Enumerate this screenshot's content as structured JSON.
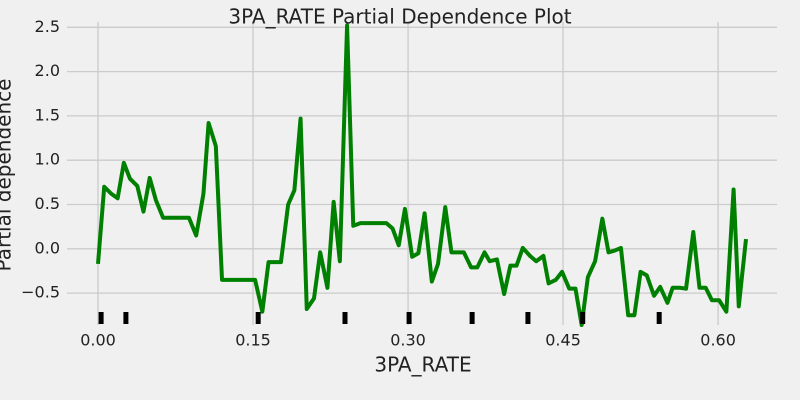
{
  "chart_data": {
    "type": "line",
    "title": "3PA_RATE Partial Dependence Plot",
    "x_label": "3PA_RATE",
    "y_label": "Partial dependence",
    "xlim": [
      -0.03,
      0.657
    ],
    "ylim": [
      -0.86,
      2.56
    ],
    "xticks": [
      {
        "value": 0,
        "label": "0.00"
      },
      {
        "value": 0.15,
        "label": "0.15"
      },
      {
        "value": 0.3,
        "label": "0.30"
      },
      {
        "value": 0.45,
        "label": "0.45"
      },
      {
        "value": 0.6,
        "label": "0.60"
      }
    ],
    "yticks": [
      {
        "value": -0.5,
        "label": "−0.5"
      },
      {
        "value": 0,
        "label": "0.0"
      },
      0.5,
      {
        "value": 1,
        "label": "1.0"
      },
      1.5,
      {
        "value": 2,
        "label": "2.0"
      },
      2.5
    ],
    "grid": true,
    "series": [
      {
        "color": "#008000",
        "x": [
          0.0,
          0.006,
          0.013,
          0.019,
          0.025,
          0.031,
          0.038,
          0.044,
          0.05,
          0.056,
          0.063,
          0.07,
          0.075,
          0.082,
          0.088,
          0.095,
          0.102,
          0.107,
          0.114,
          0.12,
          0.127,
          0.133,
          0.139,
          0.146,
          0.152,
          0.159,
          0.165,
          0.171,
          0.177,
          0.184,
          0.19,
          0.196,
          0.202,
          0.209,
          0.215,
          0.222,
          0.228,
          0.234,
          0.241,
          0.247,
          0.254,
          0.259,
          0.266,
          0.272,
          0.279,
          0.285,
          0.291,
          0.297,
          0.304,
          0.31,
          0.316,
          0.323,
          0.329,
          0.336,
          0.342,
          0.348,
          0.354,
          0.361,
          0.367,
          0.374,
          0.379,
          0.386,
          0.393,
          0.399,
          0.405,
          0.411,
          0.418,
          0.424,
          0.431,
          0.436,
          0.443,
          0.449,
          0.456,
          0.462,
          0.468,
          0.474,
          0.481,
          0.488,
          0.494,
          0.5,
          0.506,
          0.513,
          0.519,
          0.525,
          0.531,
          0.538,
          0.544,
          0.551,
          0.556,
          0.563,
          0.569,
          0.576,
          0.582,
          0.588,
          0.594,
          0.601,
          0.608,
          0.615,
          0.62,
          0.627
        ],
        "values": [
          -0.17,
          0.7,
          0.62,
          0.57,
          0.97,
          0.79,
          0.71,
          0.42,
          0.8,
          0.55,
          0.35,
          0.35,
          0.35,
          0.35,
          0.35,
          0.15,
          0.62,
          1.42,
          1.16,
          -0.35,
          -0.35,
          -0.35,
          -0.35,
          -0.35,
          -0.35,
          -0.71,
          -0.15,
          -0.15,
          -0.15,
          0.5,
          0.66,
          1.47,
          -0.68,
          -0.56,
          -0.04,
          -0.44,
          0.53,
          -0.14,
          2.52,
          0.26,
          0.29,
          0.29,
          0.29,
          0.29,
          0.29,
          0.23,
          0.04,
          0.45,
          -0.09,
          -0.05,
          0.4,
          -0.37,
          -0.17,
          0.47,
          -0.04,
          -0.04,
          -0.04,
          -0.21,
          -0.21,
          -0.04,
          -0.14,
          -0.12,
          -0.51,
          -0.19,
          -0.19,
          0.01,
          -0.08,
          -0.14,
          -0.08,
          -0.39,
          -0.35,
          -0.26,
          -0.45,
          -0.45,
          -0.86,
          -0.32,
          -0.14,
          0.34,
          -0.04,
          -0.02,
          0.01,
          -0.75,
          -0.75,
          -0.26,
          -0.3,
          -0.53,
          -0.43,
          -0.61,
          -0.44,
          -0.44,
          -0.45,
          0.19,
          -0.44,
          -0.44,
          -0.58,
          -0.58,
          -0.71,
          0.67,
          -0.65,
          0.11
        ]
      }
    ],
    "rug": {
      "color": "#000000",
      "x": [
        0.003,
        0.027,
        0.155,
        0.239,
        0.301,
        0.362,
        0.416,
        0.469,
        0.543
      ]
    }
  }
}
